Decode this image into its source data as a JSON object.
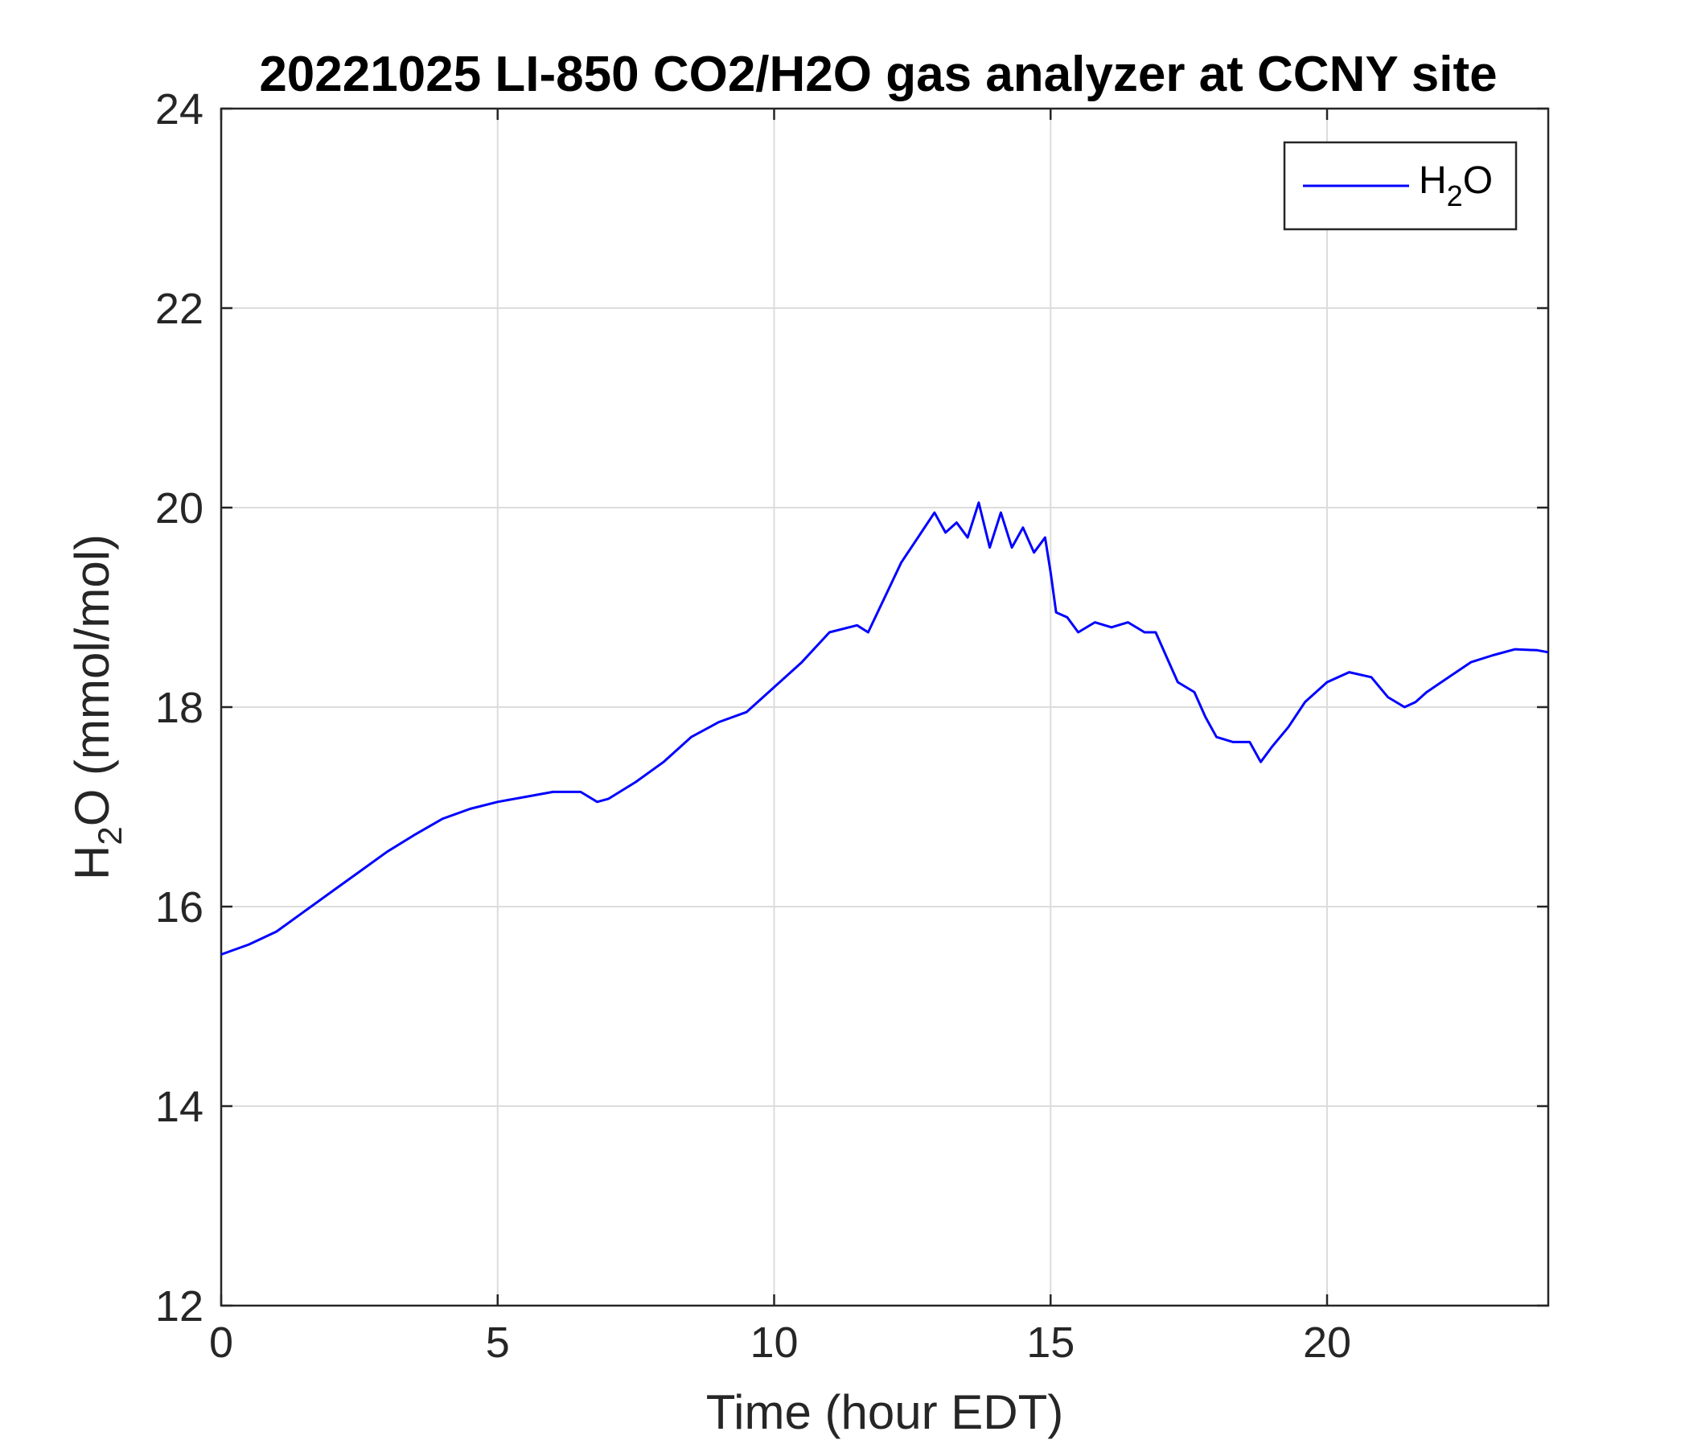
{
  "chart_data": {
    "type": "line",
    "title": "20221025 LI-850 CO2/H2O gas analyzer at CCNY site",
    "xlabel": "Time (hour EDT)",
    "ylabel": "H2O (mmol/mol)",
    "ylabel_parts": {
      "base": "H",
      "sub": "2",
      "rest": "O (mmol/mol)"
    },
    "xlim": [
      0,
      24
    ],
    "ylim": [
      12,
      24
    ],
    "xticks": [
      0,
      5,
      10,
      15,
      20
    ],
    "yticks": [
      12,
      14,
      16,
      18,
      20,
      22,
      24
    ],
    "grid": true,
    "legend_position": "top-right",
    "series": [
      {
        "name": "H2O",
        "name_parts": {
          "base": "H",
          "sub": "2",
          "rest": "O"
        },
        "color": "#0000ff",
        "x": [
          0,
          0.5,
          1,
          1.5,
          2,
          2.5,
          3,
          3.5,
          4,
          4.5,
          5,
          5.5,
          6,
          6.5,
          6.8,
          7,
          7.5,
          8,
          8.5,
          9,
          9.5,
          10,
          10.5,
          11,
          11.5,
          11.7,
          12,
          12.3,
          12.6,
          12.9,
          13.1,
          13.3,
          13.5,
          13.7,
          13.9,
          14.1,
          14.3,
          14.5,
          14.7,
          14.9,
          15.0,
          15.1,
          15.3,
          15.5,
          15.8,
          16.1,
          16.4,
          16.7,
          16.9,
          17.1,
          17.3,
          17.6,
          17.8,
          18.0,
          18.3,
          18.6,
          18.8,
          19.0,
          19.3,
          19.6,
          20.0,
          20.4,
          20.8,
          21.1,
          21.4,
          21.6,
          21.8,
          22.2,
          22.6,
          23.0,
          23.4,
          23.8,
          24.0
        ],
        "y": [
          15.52,
          15.62,
          15.75,
          15.95,
          16.15,
          16.35,
          16.55,
          16.72,
          16.88,
          16.98,
          17.05,
          17.1,
          17.15,
          17.15,
          17.05,
          17.08,
          17.25,
          17.45,
          17.7,
          17.85,
          17.95,
          18.2,
          18.45,
          18.75,
          18.82,
          18.75,
          19.1,
          19.45,
          19.7,
          19.95,
          19.75,
          19.85,
          19.7,
          20.05,
          19.6,
          19.95,
          19.6,
          19.8,
          19.55,
          19.7,
          19.35,
          18.95,
          18.9,
          18.75,
          18.85,
          18.8,
          18.85,
          18.75,
          18.75,
          18.5,
          18.25,
          18.15,
          17.9,
          17.7,
          17.65,
          17.65,
          17.45,
          17.6,
          17.8,
          18.05,
          18.25,
          18.35,
          18.3,
          18.1,
          18.0,
          18.05,
          18.15,
          18.3,
          18.45,
          18.52,
          18.58,
          18.57,
          18.55
        ]
      }
    ]
  }
}
